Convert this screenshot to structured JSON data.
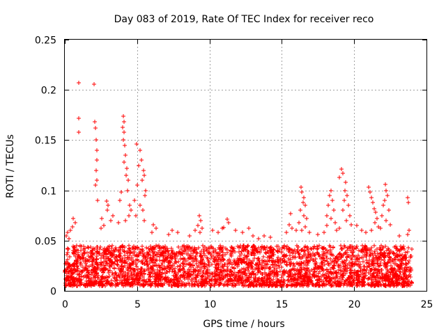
{
  "chart_data": {
    "type": "scatter",
    "title": "Day 083 of 2019, Rate Of TEC Index for receiver reco",
    "xlabel": "GPS time / hours",
    "ylabel": "ROTI / TECUs",
    "xlim": [
      0,
      25
    ],
    "ylim": [
      0,
      0.25
    ],
    "x_ticks": [
      0,
      5,
      10,
      15,
      20,
      25
    ],
    "x_tick_labels": [
      "0",
      "5",
      "10",
      "15",
      "20",
      "25"
    ],
    "y_ticks": [
      0,
      0.05,
      0.1,
      0.15,
      0.2,
      0.25
    ],
    "y_tick_labels": [
      "0",
      "0.05",
      "0.1",
      "0.15",
      "0.2",
      "0.25"
    ],
    "grid": true,
    "marker": "+",
    "series": [
      {
        "name": "ROTI",
        "color": "#ff0000",
        "points": [
          [
            0.95,
            0.207
          ],
          [
            2.0,
            0.206
          ],
          [
            0.95,
            0.172
          ],
          [
            0.95,
            0.158
          ],
          [
            2.05,
            0.168
          ],
          [
            2.1,
            0.162
          ],
          [
            2.15,
            0.15
          ],
          [
            2.2,
            0.14
          ],
          [
            2.2,
            0.13
          ],
          [
            2.15,
            0.12
          ],
          [
            2.2,
            0.11
          ],
          [
            2.1,
            0.105
          ],
          [
            2.25,
            0.09
          ],
          [
            4.05,
            0.174
          ],
          [
            4.1,
            0.168
          ],
          [
            4.0,
            0.163
          ],
          [
            4.1,
            0.158
          ],
          [
            4.05,
            0.15
          ],
          [
            4.15,
            0.145
          ],
          [
            4.2,
            0.135
          ],
          [
            4.1,
            0.128
          ],
          [
            4.3,
            0.122
          ],
          [
            4.25,
            0.115
          ],
          [
            4.4,
            0.11
          ],
          [
            4.35,
            0.1
          ],
          [
            3.9,
            0.098
          ],
          [
            3.8,
            0.09
          ],
          [
            4.5,
            0.085
          ],
          [
            4.6,
            0.08
          ],
          [
            4.45,
            0.075
          ],
          [
            4.2,
            0.07
          ],
          [
            3.7,
            0.068
          ],
          [
            4.95,
            0.146
          ],
          [
            5.2,
            0.14
          ],
          [
            5.3,
            0.13
          ],
          [
            5.1,
            0.125
          ],
          [
            5.45,
            0.12
          ],
          [
            5.5,
            0.115
          ],
          [
            5.35,
            0.11
          ],
          [
            5.0,
            0.105
          ],
          [
            5.6,
            0.1
          ],
          [
            5.55,
            0.095
          ],
          [
            4.8,
            0.09
          ],
          [
            5.2,
            0.085
          ],
          [
            5.4,
            0.08
          ],
          [
            4.9,
            0.075
          ],
          [
            5.5,
            0.07
          ],
          [
            2.9,
            0.089
          ],
          [
            3.0,
            0.085
          ],
          [
            2.95,
            0.08
          ],
          [
            3.3,
            0.075
          ],
          [
            3.2,
            0.07
          ],
          [
            2.7,
            0.065
          ],
          [
            2.5,
            0.062
          ],
          [
            2.55,
            0.072
          ],
          [
            0.6,
            0.072
          ],
          [
            0.7,
            0.068
          ],
          [
            0.55,
            0.064
          ],
          [
            0.4,
            0.06
          ],
          [
            0.2,
            0.058
          ],
          [
            0.1,
            0.055
          ],
          [
            0.3,
            0.052
          ],
          [
            6.1,
            0.066
          ],
          [
            6.3,
            0.062
          ],
          [
            6.0,
            0.058
          ],
          [
            7.2,
            0.056
          ],
          [
            7.4,
            0.06
          ],
          [
            7.8,
            0.058
          ],
          [
            8.6,
            0.055
          ],
          [
            9.0,
            0.06
          ],
          [
            9.3,
            0.075
          ],
          [
            9.4,
            0.07
          ],
          [
            9.2,
            0.065
          ],
          [
            9.5,
            0.062
          ],
          [
            9.35,
            0.058
          ],
          [
            10.2,
            0.06
          ],
          [
            10.6,
            0.058
          ],
          [
            10.9,
            0.062
          ],
          [
            11.2,
            0.071
          ],
          [
            11.3,
            0.068
          ],
          [
            11.0,
            0.063
          ],
          [
            11.8,
            0.06
          ],
          [
            12.3,
            0.058
          ],
          [
            12.7,
            0.062
          ],
          [
            13.0,
            0.055
          ],
          [
            13.4,
            0.052
          ],
          [
            13.8,
            0.055
          ],
          [
            14.2,
            0.053
          ],
          [
            15.6,
            0.077
          ],
          [
            15.5,
            0.066
          ],
          [
            15.7,
            0.062
          ],
          [
            15.3,
            0.058
          ],
          [
            16.0,
            0.06
          ],
          [
            16.35,
            0.103
          ],
          [
            16.4,
            0.098
          ],
          [
            16.5,
            0.093
          ],
          [
            16.45,
            0.088
          ],
          [
            16.6,
            0.085
          ],
          [
            16.3,
            0.08
          ],
          [
            16.5,
            0.075
          ],
          [
            16.7,
            0.072
          ],
          [
            16.2,
            0.068
          ],
          [
            16.6,
            0.064
          ],
          [
            16.4,
            0.06
          ],
          [
            16.9,
            0.058
          ],
          [
            17.5,
            0.056
          ],
          [
            17.9,
            0.058
          ],
          [
            18.1,
            0.075
          ],
          [
            18.4,
            0.1
          ],
          [
            18.3,
            0.095
          ],
          [
            18.5,
            0.09
          ],
          [
            18.2,
            0.085
          ],
          [
            18.6,
            0.08
          ],
          [
            18.4,
            0.072
          ],
          [
            18.7,
            0.068
          ],
          [
            18.1,
            0.065
          ],
          [
            18.8,
            0.06
          ],
          [
            19.1,
            0.121
          ],
          [
            19.2,
            0.117
          ],
          [
            19.0,
            0.113
          ],
          [
            19.4,
            0.108
          ],
          [
            19.35,
            0.1
          ],
          [
            19.5,
            0.095
          ],
          [
            19.3,
            0.09
          ],
          [
            19.6,
            0.085
          ],
          [
            19.2,
            0.08
          ],
          [
            19.7,
            0.075
          ],
          [
            19.45,
            0.07
          ],
          [
            19.8,
            0.066
          ],
          [
            19.0,
            0.062
          ],
          [
            20.2,
            0.065
          ],
          [
            20.5,
            0.06
          ],
          [
            20.8,
            0.058
          ],
          [
            21.0,
            0.103
          ],
          [
            21.1,
            0.098
          ],
          [
            21.2,
            0.093
          ],
          [
            21.3,
            0.088
          ],
          [
            21.4,
            0.082
          ],
          [
            21.5,
            0.078
          ],
          [
            21.6,
            0.072
          ],
          [
            21.45,
            0.068
          ],
          [
            21.7,
            0.064
          ],
          [
            21.2,
            0.06
          ],
          [
            22.15,
            0.106
          ],
          [
            22.2,
            0.1
          ],
          [
            22.3,
            0.095
          ],
          [
            22.1,
            0.09
          ],
          [
            22.0,
            0.085
          ],
          [
            22.4,
            0.08
          ],
          [
            21.9,
            0.075
          ],
          [
            22.2,
            0.07
          ],
          [
            22.5,
            0.066
          ],
          [
            21.8,
            0.062
          ],
          [
            23.7,
            0.093
          ],
          [
            23.75,
            0.088
          ],
          [
            23.8,
            0.06
          ],
          [
            23.7,
            0.056
          ],
          [
            23.1,
            0.055
          ]
        ],
        "dense_band": {
          "description": "dense cluster of points across the whole day",
          "x_range": [
            0,
            24
          ],
          "y_range": [
            0.005,
            0.045
          ]
        }
      }
    ]
  }
}
